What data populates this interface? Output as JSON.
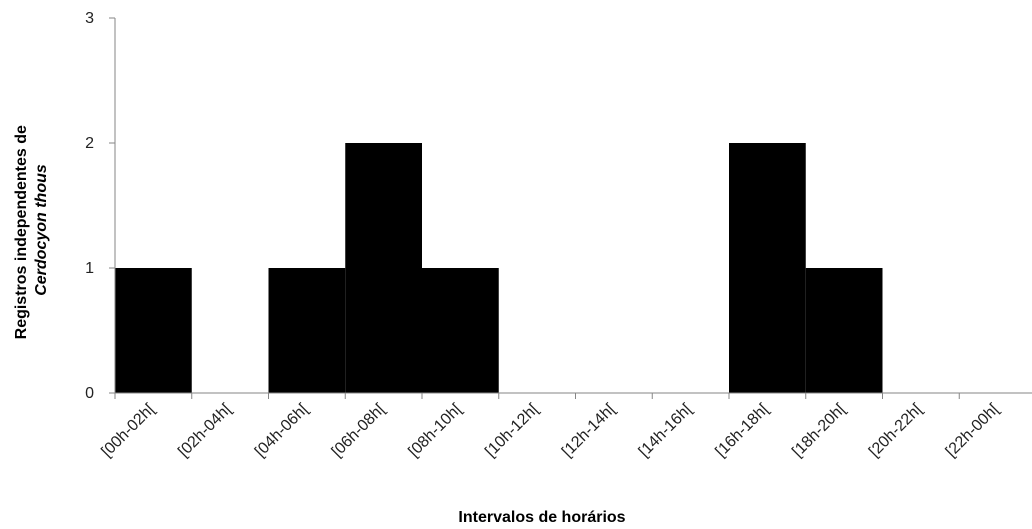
{
  "chart_data": {
    "type": "bar",
    "categories": [
      "[00h-02h[",
      "[02h-04h[",
      "[04h-06h[",
      "[06h-08h[",
      "[08h-10h[",
      "[10h-12h[",
      "[12h-14h[",
      "[14h-16h[",
      "[16h-18h[",
      "[18h-20h[",
      "[20h-22h[",
      "[22h-00h["
    ],
    "values": [
      1,
      0,
      1,
      2,
      1,
      0,
      0,
      0,
      2,
      1,
      0,
      0
    ],
    "xlabel": "Intervalos de horários",
    "ylabel_line1": "Registros independentes de",
    "ylabel_line2": "Cerdocyon thous",
    "ylim": [
      0,
      3
    ],
    "yticks": [
      0,
      1,
      2,
      3
    ],
    "grid": false,
    "bar_color": "#000000",
    "axis_color": "#868686"
  }
}
